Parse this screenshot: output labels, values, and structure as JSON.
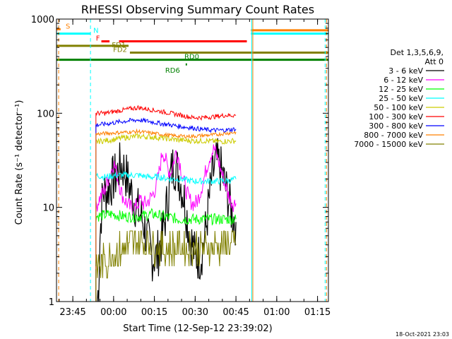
{
  "chart_data": {
    "type": "line",
    "title": "RHESSI Observing Summary Count Rates",
    "xlabel": "Start Time (12-Sep-12 23:39:02)",
    "ylabel": "Count Rate (s⁻¹ detector⁻¹)",
    "yscale": "log",
    "ylim": [
      1,
      1000
    ],
    "xlim_minutes_after_start": [
      0,
      100
    ],
    "y_ticks": [
      "1",
      "10",
      "100",
      "1000"
    ],
    "x_ticks": [
      "23:45",
      "00:00",
      "00:15",
      "00:30",
      "00:45",
      "01:00",
      "01:15"
    ],
    "legend": {
      "header_line1": "Det 1,3,5,6,9,",
      "header_line2": "Att 0",
      "placement": "right"
    },
    "series": [
      {
        "name": "3 - 6 keV",
        "color": "#000000",
        "points": [
          [
            15.0,
            1
          ],
          [
            15.5,
            1.5
          ],
          [
            16.0,
            5
          ],
          [
            16.5,
            9
          ],
          [
            17.0,
            14
          ],
          [
            17.5,
            15
          ],
          [
            18,
            14
          ],
          [
            19,
            16
          ],
          [
            20,
            18
          ],
          [
            21,
            20
          ],
          [
            22,
            22
          ],
          [
            23,
            26
          ],
          [
            24,
            28
          ],
          [
            25,
            25
          ],
          [
            26,
            20
          ],
          [
            27,
            16
          ],
          [
            28,
            13
          ],
          [
            29,
            11
          ],
          [
            30,
            9
          ],
          [
            31,
            8
          ],
          [
            32,
            7
          ],
          [
            33,
            5
          ],
          [
            34,
            4
          ],
          [
            35,
            3
          ],
          [
            36,
            3
          ],
          [
            37,
            3
          ],
          [
            38,
            4
          ],
          [
            39,
            5
          ],
          [
            40,
            8
          ],
          [
            41,
            13
          ],
          [
            42,
            22
          ],
          [
            43,
            29
          ],
          [
            44,
            27
          ],
          [
            45,
            22
          ],
          [
            46,
            17
          ],
          [
            47,
            12
          ],
          [
            48,
            8
          ],
          [
            49,
            5
          ],
          [
            50,
            4
          ],
          [
            51,
            3
          ],
          [
            52,
            3
          ],
          [
            53,
            3
          ],
          [
            54,
            4
          ],
          [
            55,
            6
          ],
          [
            56,
            11
          ],
          [
            57,
            18
          ],
          [
            58,
            26
          ],
          [
            59,
            30
          ],
          [
            60,
            27
          ],
          [
            61,
            22
          ],
          [
            62,
            17
          ],
          [
            63,
            13
          ],
          [
            64,
            10
          ],
          [
            65,
            8
          ],
          [
            66,
            7
          ]
        ]
      },
      {
        "name": "6 - 12 keV",
        "color": "#ff00ff",
        "points": [
          [
            14.5,
            10
          ],
          [
            15.5,
            12
          ],
          [
            17,
            14
          ],
          [
            18,
            16
          ],
          [
            19,
            20
          ],
          [
            20,
            24
          ],
          [
            21,
            30
          ],
          [
            22,
            24
          ],
          [
            23,
            18
          ],
          [
            24,
            14
          ],
          [
            25,
            12
          ],
          [
            26,
            11
          ],
          [
            27,
            10
          ],
          [
            28,
            10
          ],
          [
            29,
            10
          ],
          [
            30,
            11
          ],
          [
            31,
            12
          ],
          [
            32,
            11
          ],
          [
            33,
            11
          ],
          [
            34,
            12
          ],
          [
            35,
            13
          ],
          [
            36,
            15
          ],
          [
            37,
            18
          ],
          [
            38,
            26
          ],
          [
            39,
            40
          ],
          [
            40,
            33
          ],
          [
            41,
            26
          ],
          [
            42,
            23
          ],
          [
            43,
            30
          ],
          [
            44,
            40
          ],
          [
            45,
            33
          ],
          [
            46,
            24
          ],
          [
            47,
            18
          ],
          [
            48,
            14
          ],
          [
            49,
            12
          ],
          [
            50,
            11
          ],
          [
            51,
            11
          ],
          [
            52,
            12
          ],
          [
            53,
            15
          ],
          [
            54,
            19
          ],
          [
            55,
            25
          ],
          [
            56,
            32
          ],
          [
            57,
            38
          ],
          [
            58,
            42
          ],
          [
            59,
            35
          ],
          [
            60,
            28
          ],
          [
            61,
            22
          ],
          [
            62,
            18
          ],
          [
            63,
            14
          ],
          [
            64,
            12
          ],
          [
            65,
            11
          ],
          [
            66,
            11
          ]
        ]
      },
      {
        "name": "12 - 25 keV",
        "color": "#00ff00",
        "points": [
          [
            14.5,
            8
          ],
          [
            20,
            8.5
          ],
          [
            25,
            8
          ],
          [
            30,
            8
          ],
          [
            35,
            8.5
          ],
          [
            40,
            8
          ],
          [
            45,
            7.5
          ],
          [
            50,
            7.5
          ],
          [
            55,
            7.5
          ],
          [
            60,
            7.5
          ],
          [
            66,
            7.5
          ]
        ]
      },
      {
        "name": "25 - 50 keV",
        "color": "#00ffff",
        "points": [
          [
            14.5,
            22
          ],
          [
            18,
            21
          ],
          [
            22,
            22
          ],
          [
            26,
            22
          ],
          [
            30,
            22
          ],
          [
            34,
            21
          ],
          [
            38,
            21
          ],
          [
            42,
            20
          ],
          [
            46,
            20
          ],
          [
            50,
            19
          ],
          [
            54,
            19
          ],
          [
            58,
            19
          ],
          [
            62,
            19
          ],
          [
            66,
            20
          ]
        ]
      },
      {
        "name": "50 - 100 keV",
        "color": "#cccc00",
        "points": [
          [
            14.5,
            50
          ],
          [
            20,
            52
          ],
          [
            25,
            55
          ],
          [
            30,
            57
          ],
          [
            35,
            56
          ],
          [
            40,
            54
          ],
          [
            45,
            52
          ],
          [
            50,
            51
          ],
          [
            55,
            51
          ],
          [
            60,
            50
          ],
          [
            66,
            51
          ]
        ]
      },
      {
        "name": "100 - 300 keV",
        "color": "#ff0000",
        "points": [
          [
            14.5,
            100
          ],
          [
            18,
            100
          ],
          [
            22,
            105
          ],
          [
            26,
            110
          ],
          [
            30,
            115
          ],
          [
            34,
            110
          ],
          [
            38,
            105
          ],
          [
            42,
            100
          ],
          [
            46,
            95
          ],
          [
            50,
            90
          ],
          [
            54,
            90
          ],
          [
            58,
            92
          ],
          [
            62,
            95
          ],
          [
            66,
            95
          ]
        ]
      },
      {
        "name": "300 - 800 keV",
        "color": "#0000ff",
        "points": [
          [
            14.5,
            75
          ],
          [
            18,
            77
          ],
          [
            22,
            80
          ],
          [
            26,
            83
          ],
          [
            30,
            85
          ],
          [
            34,
            82
          ],
          [
            38,
            78
          ],
          [
            42,
            75
          ],
          [
            46,
            72
          ],
          [
            50,
            70
          ],
          [
            54,
            67
          ],
          [
            58,
            66
          ],
          [
            62,
            66
          ],
          [
            66,
            68
          ]
        ]
      },
      {
        "name": "800 - 7000 keV",
        "color": "#ff8000",
        "points": [
          [
            14.5,
            60
          ],
          [
            18,
            61
          ],
          [
            22,
            62
          ],
          [
            26,
            63
          ],
          [
            30,
            64
          ],
          [
            34,
            62
          ],
          [
            38,
            60
          ],
          [
            42,
            58
          ],
          [
            46,
            57
          ],
          [
            50,
            57
          ],
          [
            54,
            58
          ],
          [
            58,
            59
          ],
          [
            62,
            61
          ],
          [
            66,
            63
          ]
        ]
      },
      {
        "name": "7000 - 15000 keV",
        "color": "#808000",
        "points": [
          [
            14.5,
            2.2
          ],
          [
            17,
            2.5
          ],
          [
            20,
            3.0
          ],
          [
            23,
            3.5
          ],
          [
            26,
            3.8
          ],
          [
            29,
            4.0
          ],
          [
            32,
            4.2
          ],
          [
            35,
            4.0
          ],
          [
            38,
            3.8
          ],
          [
            41,
            3.7
          ],
          [
            44,
            3.8
          ],
          [
            47,
            3.9
          ],
          [
            50,
            3.8
          ],
          [
            53,
            3.8
          ],
          [
            56,
            3.8
          ],
          [
            59,
            3.8
          ],
          [
            62,
            4.0
          ],
          [
            66,
            4.0
          ]
        ]
      }
    ],
    "flag_bars": [
      {
        "label": "S",
        "color": "#ff8000",
        "value": 780,
        "segments": [
          [
            0,
            1.5
          ]
        ]
      },
      {
        "label": "N",
        "color": "#00ffff",
        "value": 700,
        "segments": [
          [
            0,
            12.5
          ],
          [
            71.5,
            100
          ]
        ]
      },
      {
        "label": "F",
        "color": "#ff0000",
        "value": 580,
        "segments": [
          [
            16.5,
            19.5
          ],
          [
            23,
            70
          ]
        ]
      },
      {
        "label": "",
        "color": "#ff8000",
        "value": 760,
        "segments": [
          [
            71.5,
            100
          ]
        ]
      },
      {
        "label": "FD1",
        "color": "#808000",
        "value": 520,
        "segments": [
          [
            0,
            26.5
          ]
        ]
      },
      {
        "label": "FD2",
        "color": "#808000",
        "value": 440,
        "segments": [
          [
            27,
            100
          ]
        ]
      },
      {
        "label": "RD6",
        "color": "#008000",
        "value": 330,
        "segments": [
          [
            47.5,
            48
          ]
        ]
      },
      {
        "label": "RD0",
        "color": "#008000",
        "value": 370,
        "segments": [
          [
            0,
            100
          ]
        ]
      }
    ],
    "vertical_lines": [
      {
        "x": 0.8,
        "color": "#ff8000",
        "dashed": true
      },
      {
        "x": 12.5,
        "color": "#00ffff",
        "dashed": true
      },
      {
        "x": 71.8,
        "color": "#00ffff",
        "dashed": false
      },
      {
        "x": 72.2,
        "color": "#ff8000",
        "dashed": false
      },
      {
        "x": 98.8,
        "color": "#00ffff",
        "dashed": true
      },
      {
        "x": 99.3,
        "color": "#ff8000",
        "dashed": true
      }
    ],
    "grid": false,
    "footer_date": "18-Oct-2021 23:03"
  }
}
